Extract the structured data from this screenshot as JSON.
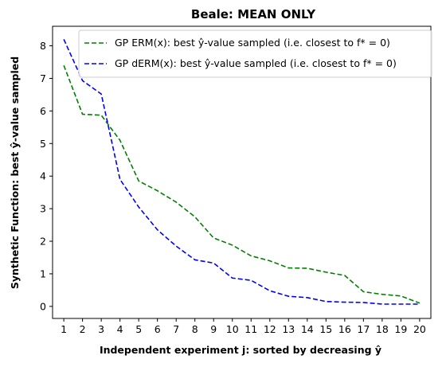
{
  "chart_data": {
    "type": "line",
    "title": "Beale: MEAN ONLY",
    "xlabel": "Independent experiment j: sorted by decreasing ŷ",
    "ylabel": "Synthetic Function: best ŷ-value sampled",
    "x": [
      1,
      2,
      3,
      4,
      5,
      6,
      7,
      8,
      9,
      10,
      11,
      12,
      13,
      14,
      15,
      16,
      17,
      18,
      19,
      20
    ],
    "xlim": [
      0.4,
      20.6
    ],
    "ylim": [
      -0.37,
      8.6
    ],
    "yticks": [
      0,
      1,
      2,
      3,
      4,
      5,
      6,
      7,
      8
    ],
    "grid": false,
    "legend_position": "top-right",
    "series": [
      {
        "name": "GP ERM(x):   best ŷ-value sampled (i.e. closest to f* = 0)",
        "color": "#008000",
        "values": [
          7.4,
          5.9,
          5.87,
          5.1,
          3.85,
          3.55,
          3.2,
          2.75,
          2.1,
          1.88,
          1.55,
          1.4,
          1.18,
          1.17,
          1.05,
          0.95,
          0.45,
          0.37,
          0.32,
          0.1
        ]
      },
      {
        "name": "GP dERM(x): best ŷ-value sampled (i.e. closest to f* = 0)",
        "color": "#0000ff",
        "values": [
          8.2,
          6.93,
          6.52,
          3.9,
          3.05,
          2.35,
          1.85,
          1.43,
          1.33,
          0.87,
          0.8,
          0.48,
          0.31,
          0.27,
          0.15,
          0.13,
          0.12,
          0.07,
          0.07,
          0.07
        ]
      }
    ]
  }
}
